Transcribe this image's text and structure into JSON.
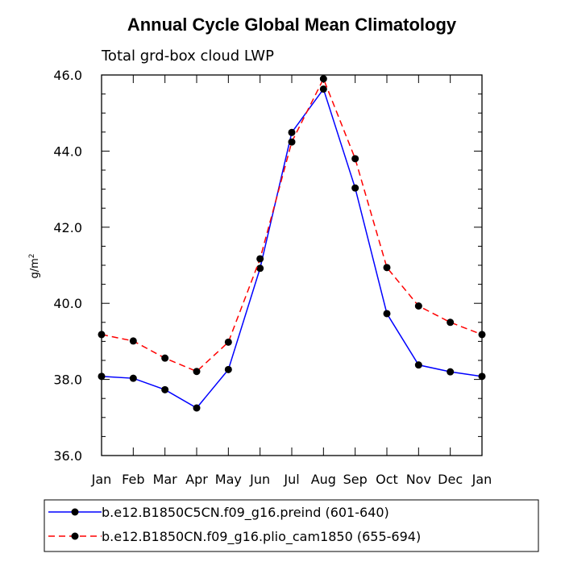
{
  "chart_data": {
    "type": "line",
    "title": "Annual Cycle Global Mean Climatology",
    "subtitle": "Total grd-box cloud LWP",
    "xlabel": "",
    "ylabel": "g/m",
    "ylabel_sup": "2",
    "categories": [
      "Jan",
      "Feb",
      "Mar",
      "Apr",
      "May",
      "Jun",
      "Jul",
      "Aug",
      "Sep",
      "Oct",
      "Nov",
      "Dec",
      "Jan"
    ],
    "ylim": [
      36.0,
      46.0
    ],
    "yticks": [
      "36.0",
      "38.0",
      "40.0",
      "42.0",
      "44.0",
      "46.0"
    ],
    "series": [
      {
        "name": "b.e12.B1850C5CN.f09_g16.preind (601-640)",
        "color": "#0000ff",
        "dash": "solid",
        "values": [
          38.08,
          38.03,
          37.73,
          37.25,
          38.26,
          40.92,
          44.49,
          45.63,
          43.03,
          39.73,
          38.38,
          38.2,
          38.08
        ]
      },
      {
        "name": "b.e12.B1850CN.f09_g16.plio_cam1850 (655-694)",
        "color": "#ff0000",
        "dash": "dashed",
        "values": [
          39.18,
          39.01,
          38.56,
          38.21,
          38.98,
          41.17,
          44.24,
          45.9,
          43.8,
          40.94,
          39.93,
          39.5,
          39.18
        ]
      }
    ],
    "legend_position": "bottom"
  }
}
